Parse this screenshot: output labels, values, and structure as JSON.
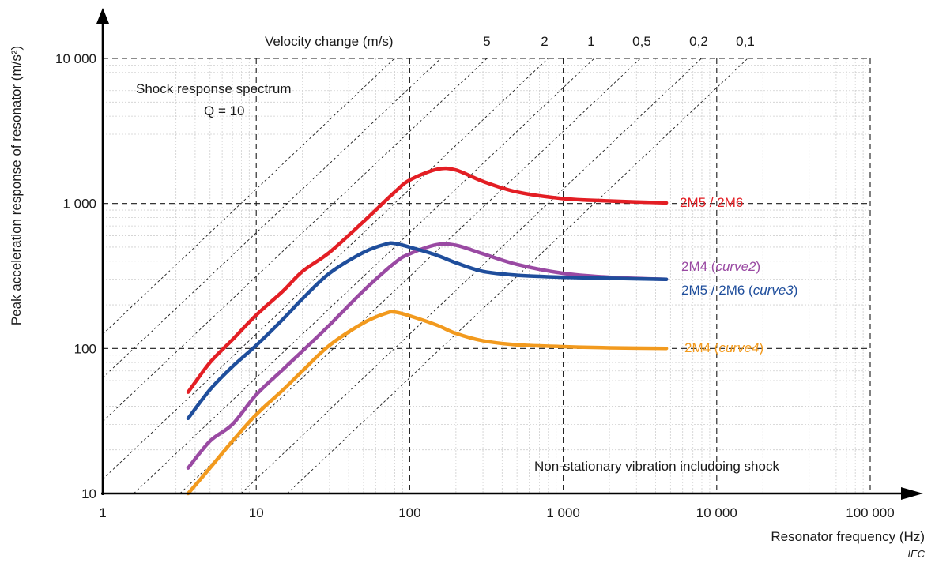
{
  "chart_data": {
    "type": "line",
    "x_scale": "log",
    "y_scale": "log",
    "xlim": [
      1,
      100000
    ],
    "ylim": [
      10,
      10000
    ],
    "xlabel": "Resonator frequency  (Hz)",
    "ylabel": "Peak acceleration response of resonator  (m/s²)",
    "x_ticks": [
      {
        "value": 1,
        "label": "1"
      },
      {
        "value": 10,
        "label": "10"
      },
      {
        "value": 100,
        "label": "100"
      },
      {
        "value": 1000,
        "label": "1 000"
      },
      {
        "value": 10000,
        "label": "10 000"
      },
      {
        "value": 100000,
        "label": "100 000"
      }
    ],
    "y_ticks": [
      {
        "value": 10,
        "label": "10"
      },
      {
        "value": 100,
        "label": "100"
      },
      {
        "value": 1000,
        "label": "1 000"
      },
      {
        "value": 10000,
        "label": "10 000"
      }
    ],
    "grid": true,
    "velocity_lines": {
      "title": "Velocity change  (m/s)",
      "values": [
        {
          "v": 5,
          "label": "5"
        },
        {
          "v": 2,
          "label": "2"
        },
        {
          "v": 1,
          "label": "1"
        },
        {
          "v": 0.5,
          "label": "0,5"
        },
        {
          "v": 0.2,
          "label": "0,2"
        },
        {
          "v": 0.1,
          "label": "0,1"
        }
      ],
      "extra_unlabeled": [
        20,
        10
      ]
    },
    "annotations": {
      "spectrum_title": "Shock response spectrum",
      "q_value": "Q = 10",
      "footer_note": "Non-stationary vibration includoing shock",
      "source": "IEC"
    },
    "series": [
      {
        "name": "2M5 / 2M6",
        "label_plain": "2M5 / 2M6",
        "label_italic": "",
        "color": "#e31e24",
        "x": [
          3.6,
          5,
          7,
          10,
          15,
          20,
          30,
          50,
          80,
          100,
          150,
          200,
          300,
          500,
          1000,
          2000,
          4700
        ],
        "y": [
          50,
          80,
          115,
          170,
          250,
          340,
          460,
          750,
          1200,
          1450,
          1720,
          1700,
          1420,
          1200,
          1080,
          1040,
          1010
        ]
      },
      {
        "name": "2M4 (curve2)",
        "label_plain": "2M4 (",
        "label_italic": "curve2",
        "label_close": ")",
        "color": "#9a4aa3",
        "x": [
          3.6,
          5,
          7,
          10,
          15,
          20,
          30,
          50,
          80,
          100,
          150,
          200,
          300,
          500,
          1000,
          2000,
          4700
        ],
        "y": [
          15,
          23,
          30,
          48,
          72,
          96,
          145,
          250,
          390,
          450,
          520,
          515,
          450,
          380,
          330,
          310,
          300
        ]
      },
      {
        "name": "2M5 / 2M6 (curve3)",
        "label_plain": "2M5 / 2M6 (",
        "label_italic": "curve3",
        "label_close": ")",
        "color": "#1f4e9c",
        "x": [
          3.6,
          5,
          7,
          10,
          15,
          20,
          30,
          50,
          70,
          80,
          100,
          150,
          200,
          300,
          500,
          1000,
          2000,
          4700
        ],
        "y": [
          33,
          52,
          75,
          105,
          160,
          220,
          330,
          460,
          525,
          530,
          500,
          440,
          390,
          340,
          320,
          310,
          305,
          300
        ]
      },
      {
        "name": "2M4 (curve4)",
        "label_plain": "2M4 (",
        "label_italic": "curve4",
        "label_close": ")",
        "color": "#f29a1e",
        "x": [
          3.6,
          5,
          7,
          10,
          15,
          20,
          30,
          50,
          70,
          80,
          100,
          150,
          200,
          300,
          500,
          1000,
          2000,
          4700
        ],
        "y": [
          10,
          15,
          23,
          35,
          52,
          70,
          105,
          150,
          175,
          178,
          168,
          145,
          127,
          113,
          106,
          103,
          101,
          100
        ]
      }
    ]
  }
}
